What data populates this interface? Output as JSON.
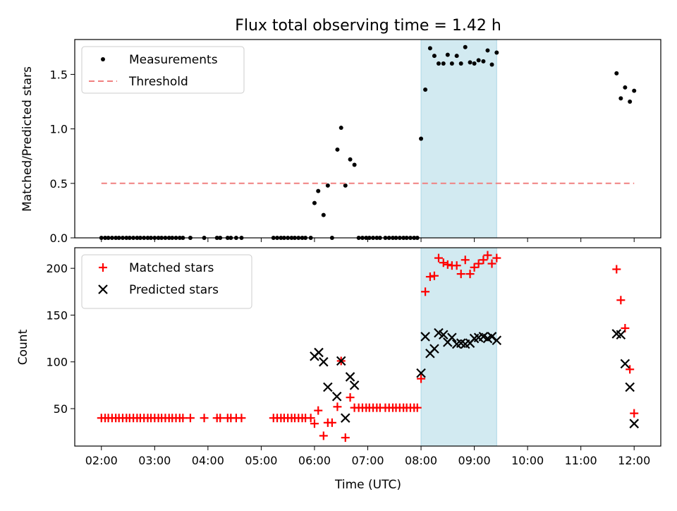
{
  "figure": {
    "title": "Flux total observing time = 1.42 h",
    "xlabel": "Time (UTC)",
    "highlight": {
      "start_hours": 8.0,
      "end_hours": 9.42,
      "color": "#add8e6"
    }
  },
  "chart_data": [
    {
      "type": "scatter",
      "ylabel": "Matched/Predicted stars",
      "xlim": [
        1.5,
        12.5
      ],
      "ylim": [
        0,
        1.82
      ],
      "yticks": [
        0.0,
        0.5,
        1.0,
        1.5
      ],
      "ytick_labels": [
        "0.0",
        "0.5",
        "1.0",
        "1.5"
      ],
      "legend_position": "upper-left",
      "series": [
        {
          "name": "Measurements",
          "marker": "dot",
          "color": "#000000",
          "x": [
            2.0,
            2.07,
            2.13,
            2.2,
            2.27,
            2.33,
            2.4,
            2.47,
            2.53,
            2.6,
            2.67,
            2.73,
            2.8,
            2.87,
            2.93,
            3.0,
            3.07,
            3.13,
            3.2,
            3.27,
            3.33,
            3.4,
            3.47,
            3.53,
            3.67,
            3.93,
            4.17,
            4.23,
            4.37,
            4.43,
            4.53,
            4.63,
            5.23,
            5.3,
            5.37,
            5.43,
            5.5,
            5.57,
            5.63,
            5.7,
            5.77,
            5.83,
            5.93,
            6.0,
            6.07,
            6.17,
            6.25,
            6.33,
            6.43,
            6.5,
            6.58,
            6.67,
            6.75,
            6.83,
            6.9,
            6.97,
            7.03,
            7.1,
            7.17,
            7.23,
            7.33,
            7.4,
            7.47,
            7.53,
            7.6,
            7.67,
            7.73,
            7.8,
            7.87,
            7.93,
            8.0,
            8.08,
            8.17,
            8.25,
            8.33,
            8.42,
            8.5,
            8.58,
            8.67,
            8.75,
            8.83,
            8.92,
            9.0,
            9.08,
            9.17,
            9.25,
            9.33,
            9.42,
            11.67,
            11.75,
            11.83,
            11.92,
            12.0
          ],
          "y": [
            0,
            0,
            0,
            0,
            0,
            0,
            0,
            0,
            0,
            0,
            0,
            0,
            0,
            0,
            0,
            0,
            0,
            0,
            0,
            0,
            0,
            0,
            0,
            0,
            0,
            0,
            0,
            0,
            0,
            0,
            0,
            0,
            0,
            0,
            0,
            0,
            0,
            0,
            0,
            0,
            0,
            0,
            0,
            0.32,
            0.43,
            0.21,
            0.48,
            0,
            0.81,
            1.01,
            0.48,
            0.72,
            0.67,
            0,
            0,
            0,
            0,
            0,
            0,
            0,
            0,
            0,
            0,
            0,
            0,
            0,
            0,
            0,
            0,
            0,
            0.91,
            1.36,
            1.74,
            1.67,
            1.6,
            1.6,
            1.68,
            1.6,
            1.67,
            1.6,
            1.75,
            1.61,
            1.6,
            1.63,
            1.62,
            1.72,
            1.59,
            1.7,
            1.51,
            1.28,
            1.38,
            1.25,
            1.35
          ]
        },
        {
          "name": "Threshold",
          "marker": "dashed-line",
          "color": "#f08080",
          "x": [
            2.0,
            12.0
          ],
          "y": [
            0.5,
            0.5
          ]
        }
      ]
    },
    {
      "type": "scatter",
      "ylabel": "Count",
      "xlim": [
        1.5,
        12.5
      ],
      "ylim": [
        10,
        222
      ],
      "yticks": [
        50,
        100,
        150,
        200
      ],
      "ytick_labels": [
        "50",
        "100",
        "150",
        "200"
      ],
      "xticks": [
        2,
        3,
        4,
        5,
        6,
        7,
        8,
        9,
        10,
        11,
        12
      ],
      "xtick_labels": [
        "02:00",
        "03:00",
        "04:00",
        "05:00",
        "06:00",
        "07:00",
        "08:00",
        "09:00",
        "10:00",
        "11:00",
        "12:00"
      ],
      "legend_position": "upper-left",
      "series": [
        {
          "name": "Matched stars",
          "marker": "plus",
          "color": "#ff0000",
          "x": [
            2.0,
            2.07,
            2.13,
            2.2,
            2.27,
            2.33,
            2.4,
            2.47,
            2.53,
            2.6,
            2.67,
            2.73,
            2.8,
            2.87,
            2.93,
            3.0,
            3.07,
            3.13,
            3.2,
            3.27,
            3.33,
            3.4,
            3.47,
            3.53,
            3.67,
            3.93,
            4.17,
            4.23,
            4.37,
            4.43,
            4.53,
            4.63,
            5.23,
            5.3,
            5.37,
            5.43,
            5.5,
            5.57,
            5.63,
            5.7,
            5.77,
            5.83,
            5.93,
            6.0,
            6.07,
            6.17,
            6.25,
            6.33,
            6.43,
            6.5,
            6.58,
            6.67,
            6.75,
            6.83,
            6.9,
            6.97,
            7.03,
            7.1,
            7.17,
            7.23,
            7.33,
            7.4,
            7.47,
            7.53,
            7.6,
            7.67,
            7.73,
            7.8,
            7.87,
            7.93,
            8.0,
            8.08,
            8.17,
            8.25,
            8.33,
            8.42,
            8.5,
            8.58,
            8.67,
            8.75,
            8.83,
            8.92,
            9.0,
            9.08,
            9.17,
            9.25,
            9.33,
            9.42,
            11.67,
            11.75,
            11.83,
            11.92,
            12.0
          ],
          "y": [
            40,
            40,
            40,
            40,
            40,
            40,
            40,
            40,
            40,
            40,
            40,
            40,
            40,
            40,
            40,
            40,
            40,
            40,
            40,
            40,
            40,
            40,
            40,
            40,
            40,
            40,
            40,
            40,
            40,
            40,
            40,
            40,
            40,
            40,
            40,
            40,
            40,
            40,
            40,
            40,
            40,
            40,
            40,
            34,
            48,
            21,
            35,
            35,
            52,
            101,
            19,
            62,
            51,
            51,
            51,
            51,
            51,
            51,
            51,
            51,
            51,
            51,
            51,
            51,
            51,
            51,
            51,
            51,
            51,
            51,
            82,
            175,
            191,
            192,
            211,
            206,
            204,
            203,
            203,
            194,
            209,
            194,
            201,
            205,
            209,
            214,
            205,
            211,
            199,
            166,
            136,
            92,
            45
          ]
        },
        {
          "name": "Predicted stars",
          "marker": "cross",
          "color": "#000000",
          "x": [
            6.0,
            6.08,
            6.17,
            6.25,
            6.42,
            6.5,
            6.58,
            6.67,
            6.75,
            8.0,
            8.08,
            8.17,
            8.25,
            8.33,
            8.42,
            8.5,
            8.58,
            8.67,
            8.75,
            8.83,
            8.92,
            9.0,
            9.08,
            9.17,
            9.25,
            9.33,
            9.42,
            11.67,
            11.75,
            11.83,
            11.92,
            12.0
          ],
          "y": [
            106,
            110,
            100,
            73,
            63,
            101,
            40,
            84,
            75,
            88,
            127,
            109,
            114,
            131,
            129,
            121,
            126,
            119,
            120,
            119,
            120,
            125,
            126,
            127,
            125,
            127,
            123,
            130,
            129,
            98,
            73,
            34
          ]
        }
      ]
    }
  ]
}
